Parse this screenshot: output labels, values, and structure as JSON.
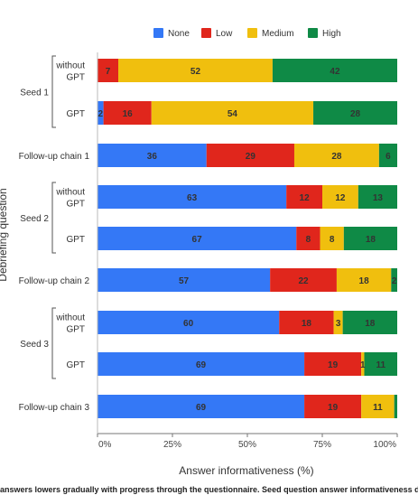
{
  "chart_data": {
    "type": "bar",
    "orientation": "horizontal",
    "stacked": true,
    "xlabel": "Answer informativeness (%)",
    "ylabel": "Debriefing question",
    "xlim": [
      0,
      100
    ],
    "x_ticks": [
      "0%",
      "25%",
      "50%",
      "75%",
      "100%"
    ],
    "legend": {
      "position": "top",
      "entries": [
        "None",
        "Low",
        "Medium",
        "High"
      ]
    },
    "colors": {
      "None": "#3478f6",
      "Low": "#e0261c",
      "Medium": "#f0bf0e",
      "High": "#0f8a46"
    },
    "groups": [
      {
        "label": "Seed 1",
        "categories": [
          0,
          1
        ]
      },
      {
        "label": "Seed 2",
        "categories": [
          3,
          4
        ]
      },
      {
        "label": "Seed 3",
        "categories": [
          6,
          7
        ]
      }
    ],
    "categories": [
      "without GPT",
      "GPT",
      "Follow-up chain 1",
      "without GPT",
      "GPT",
      "Follow-up chain 2",
      "without GPT",
      "GPT",
      "Follow-up chain 3"
    ],
    "series": [
      {
        "name": "None",
        "values": [
          0,
          2,
          36,
          63,
          67,
          57,
          60,
          69,
          69
        ],
        "labels": [
          "",
          "2",
          "36",
          "63",
          "67",
          "57",
          "60",
          "69",
          "69"
        ]
      },
      {
        "name": "Low",
        "values": [
          7,
          16,
          29,
          12,
          8,
          22,
          18,
          19,
          19
        ],
        "labels": [
          "7",
          "16",
          "29",
          "12",
          "8",
          "22",
          "18",
          "19",
          "19"
        ]
      },
      {
        "name": "Medium",
        "values": [
          52,
          54,
          28,
          12,
          8,
          18,
          3,
          1,
          11
        ],
        "labels": [
          "52",
          "54",
          "28",
          "12",
          "8",
          "18",
          "3",
          "1",
          "11"
        ]
      },
      {
        "name": "High",
        "values": [
          42,
          28,
          6,
          13,
          18,
          2,
          18,
          11,
          1
        ],
        "labels": [
          "42",
          "28",
          "6",
          "13",
          "18",
          "2",
          "18",
          "11",
          ""
        ]
      }
    ]
  },
  "caption": "answers lowers gradually with progress through the questionnaire. Seed question answer informativeness does"
}
